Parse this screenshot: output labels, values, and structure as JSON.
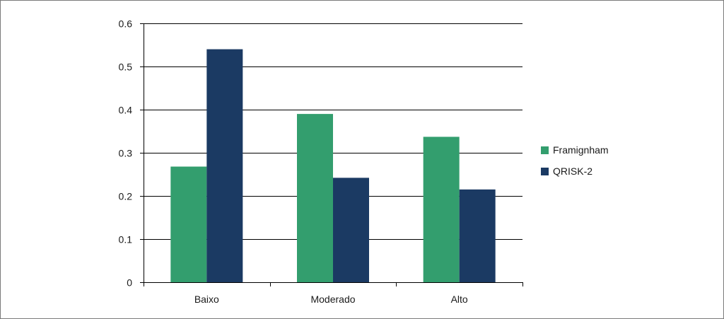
{
  "chart_data": {
    "type": "bar",
    "categories": [
      "Baixo",
      "Moderado",
      "Alto"
    ],
    "series": [
      {
        "name": "Framignham",
        "values": [
          0.268,
          0.39,
          0.337
        ],
        "color": "#339e6e"
      },
      {
        "name": "QRISK-2",
        "values": [
          0.54,
          0.242,
          0.215
        ],
        "color": "#1b3a63"
      }
    ],
    "ylim": [
      0,
      0.6
    ],
    "yticks": [
      0,
      0.1,
      0.2,
      0.3,
      0.4,
      0.5,
      0.6
    ],
    "ytick_labels": [
      "0",
      "0.1",
      "0.2",
      "0.3",
      "0.4",
      "0.5",
      "0.6"
    ],
    "grid": true,
    "legend_position": "right",
    "title": "",
    "xlabel": "",
    "ylabel": ""
  }
}
